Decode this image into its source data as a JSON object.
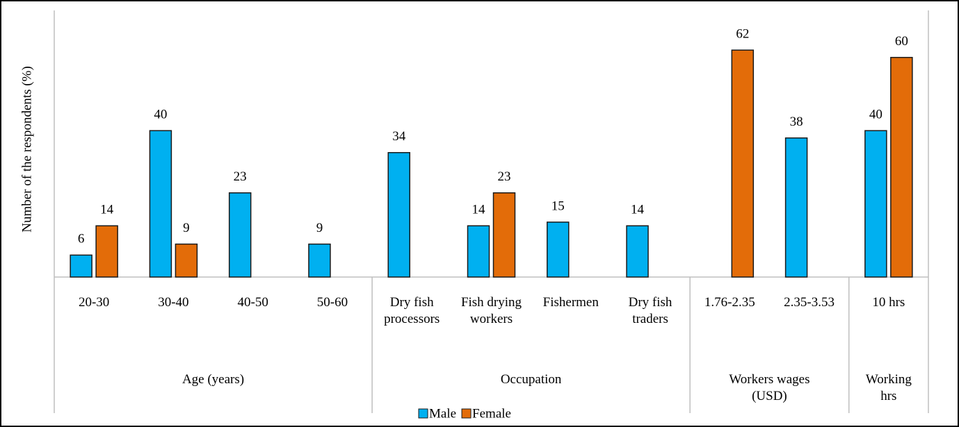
{
  "chart_data": {
    "type": "bar",
    "y_label": "Number of the respondents (%)",
    "categories": [
      "20-30",
      "30-40",
      "40-50",
      "50-60",
      "Dry fish processors",
      "Fish drying workers",
      "Fishermen",
      "Dry fish traders",
      "1.76-2.35",
      "2.35-3.53",
      "10 hrs"
    ],
    "groups": [
      {
        "name": "Age (years)",
        "start": 0,
        "end": 3
      },
      {
        "name": "Occupation",
        "start": 4,
        "end": 7
      },
      {
        "name": "Workers  wages (USD)",
        "start": 8,
        "end": 9
      },
      {
        "name": "Working hrs",
        "start": 10,
        "end": 10
      }
    ],
    "series": [
      {
        "name": "Male",
        "color": "#00b0f0",
        "values": [
          6,
          40,
          23,
          9,
          34,
          14,
          15,
          14,
          null,
          38,
          40
        ]
      },
      {
        "name": "Female",
        "color": "#e36c09",
        "values": [
          14,
          9,
          null,
          null,
          null,
          23,
          null,
          null,
          62,
          null,
          60
        ]
      }
    ],
    "ylim": [
      0,
      70
    ]
  }
}
